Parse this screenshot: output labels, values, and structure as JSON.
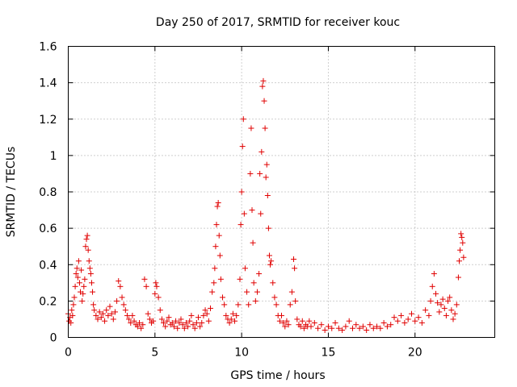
{
  "chart_data": {
    "type": "scatter",
    "title": "Day 250 of 2017, SRMTID for receiver kouc",
    "xlabel": "GPS time / hours",
    "ylabel": "SRMTID / TECUs",
    "xlim": [
      0,
      24.6
    ],
    "ylim": [
      0,
      1.6
    ],
    "xticks": [
      0,
      5,
      10,
      15,
      20
    ],
    "xtick_labels": [
      "0",
      "5",
      "10",
      "15",
      "20"
    ],
    "yticks": [
      0,
      0.2,
      0.4,
      0.6,
      0.8,
      1.0,
      1.2,
      1.4,
      1.6
    ],
    "ytick_labels": [
      "0",
      "0.2",
      "0.4",
      "0.6",
      "0.8",
      "1",
      "1.2",
      "1.4",
      "1.6"
    ],
    "grid": true,
    "marker": "+",
    "color": "#e00000",
    "series": [
      {
        "name": "SRMTID",
        "points": [
          [
            0.0,
            0.13
          ],
          [
            0.05,
            0.09
          ],
          [
            0.1,
            0.11
          ],
          [
            0.15,
            0.08
          ],
          [
            0.2,
            0.15
          ],
          [
            0.25,
            0.12
          ],
          [
            0.3,
            0.18
          ],
          [
            0.35,
            0.22
          ],
          [
            0.4,
            0.28
          ],
          [
            0.45,
            0.35
          ],
          [
            0.5,
            0.38
          ],
          [
            0.55,
            0.33
          ],
          [
            0.6,
            0.42
          ],
          [
            0.65,
            0.3
          ],
          [
            0.7,
            0.25
          ],
          [
            0.75,
            0.37
          ],
          [
            0.8,
            0.2
          ],
          [
            0.85,
            0.24
          ],
          [
            0.9,
            0.28
          ],
          [
            0.95,
            0.32
          ],
          [
            1.0,
            0.5
          ],
          [
            1.05,
            0.54
          ],
          [
            1.1,
            0.56
          ],
          [
            1.15,
            0.48
          ],
          [
            1.2,
            0.42
          ],
          [
            1.25,
            0.38
          ],
          [
            1.3,
            0.35
          ],
          [
            1.35,
            0.3
          ],
          [
            1.4,
            0.25
          ],
          [
            1.45,
            0.18
          ],
          [
            1.5,
            0.15
          ],
          [
            1.6,
            0.12
          ],
          [
            1.7,
            0.1
          ],
          [
            1.8,
            0.14
          ],
          [
            1.9,
            0.11
          ],
          [
            2.0,
            0.13
          ],
          [
            2.1,
            0.09
          ],
          [
            2.2,
            0.15
          ],
          [
            2.3,
            0.12
          ],
          [
            2.4,
            0.17
          ],
          [
            2.5,
            0.13
          ],
          [
            2.6,
            0.1
          ],
          [
            2.7,
            0.14
          ],
          [
            2.8,
            0.2
          ],
          [
            2.9,
            0.31
          ],
          [
            3.0,
            0.28
          ],
          [
            3.1,
            0.22
          ],
          [
            3.2,
            0.18
          ],
          [
            3.3,
            0.15
          ],
          [
            3.4,
            0.12
          ],
          [
            3.5,
            0.1
          ],
          [
            3.6,
            0.08
          ],
          [
            3.7,
            0.12
          ],
          [
            3.8,
            0.09
          ],
          [
            3.9,
            0.07
          ],
          [
            4.0,
            0.06
          ],
          [
            4.1,
            0.08
          ],
          [
            4.2,
            0.05
          ],
          [
            4.3,
            0.07
          ],
          [
            4.4,
            0.32
          ],
          [
            4.5,
            0.28
          ],
          [
            4.6,
            0.13
          ],
          [
            4.7,
            0.1
          ],
          [
            4.8,
            0.08
          ],
          [
            4.9,
            0.09
          ],
          [
            5.0,
            0.24
          ],
          [
            5.05,
            0.3
          ],
          [
            5.1,
            0.28
          ],
          [
            5.2,
            0.22
          ],
          [
            5.3,
            0.15
          ],
          [
            5.4,
            0.1
          ],
          [
            5.5,
            0.08
          ],
          [
            5.6,
            0.06
          ],
          [
            5.7,
            0.09
          ],
          [
            5.8,
            0.11
          ],
          [
            5.9,
            0.07
          ],
          [
            6.0,
            0.08
          ],
          [
            6.1,
            0.06
          ],
          [
            6.2,
            0.09
          ],
          [
            6.3,
            0.05
          ],
          [
            6.4,
            0.08
          ],
          [
            6.5,
            0.1
          ],
          [
            6.6,
            0.07
          ],
          [
            6.7,
            0.05
          ],
          [
            6.8,
            0.08
          ],
          [
            6.9,
            0.06
          ],
          [
            7.0,
            0.09
          ],
          [
            7.1,
            0.12
          ],
          [
            7.2,
            0.07
          ],
          [
            7.3,
            0.05
          ],
          [
            7.4,
            0.08
          ],
          [
            7.5,
            0.11
          ],
          [
            7.6,
            0.06
          ],
          [
            7.7,
            0.08
          ],
          [
            7.8,
            0.12
          ],
          [
            7.9,
            0.15
          ],
          [
            8.0,
            0.13
          ],
          [
            8.1,
            0.09
          ],
          [
            8.2,
            0.16
          ],
          [
            8.3,
            0.25
          ],
          [
            8.4,
            0.3
          ],
          [
            8.45,
            0.38
          ],
          [
            8.5,
            0.5
          ],
          [
            8.55,
            0.62
          ],
          [
            8.6,
            0.72
          ],
          [
            8.65,
            0.74
          ],
          [
            8.7,
            0.56
          ],
          [
            8.75,
            0.45
          ],
          [
            8.8,
            0.32
          ],
          [
            8.9,
            0.22
          ],
          [
            9.0,
            0.18
          ],
          [
            9.1,
            0.12
          ],
          [
            9.2,
            0.1
          ],
          [
            9.3,
            0.08
          ],
          [
            9.4,
            0.1
          ],
          [
            9.5,
            0.13
          ],
          [
            9.6,
            0.09
          ],
          [
            9.7,
            0.12
          ],
          [
            9.8,
            0.18
          ],
          [
            9.9,
            0.32
          ],
          [
            9.95,
            0.62
          ],
          [
            10.0,
            0.8
          ],
          [
            10.05,
            1.05
          ],
          [
            10.1,
            1.2
          ],
          [
            10.15,
            0.68
          ],
          [
            10.2,
            0.38
          ],
          [
            10.3,
            0.25
          ],
          [
            10.4,
            0.18
          ],
          [
            10.5,
            0.9
          ],
          [
            10.55,
            1.15
          ],
          [
            10.6,
            0.7
          ],
          [
            10.65,
            0.52
          ],
          [
            10.7,
            0.3
          ],
          [
            10.8,
            0.2
          ],
          [
            10.9,
            0.25
          ],
          [
            11.0,
            0.35
          ],
          [
            11.05,
            0.9
          ],
          [
            11.1,
            0.68
          ],
          [
            11.15,
            1.02
          ],
          [
            11.2,
            1.38
          ],
          [
            11.25,
            1.41
          ],
          [
            11.3,
            1.3
          ],
          [
            11.35,
            1.15
          ],
          [
            11.4,
            0.88
          ],
          [
            11.45,
            0.95
          ],
          [
            11.5,
            0.78
          ],
          [
            11.55,
            0.6
          ],
          [
            11.6,
            0.45
          ],
          [
            11.65,
            0.4
          ],
          [
            11.7,
            0.42
          ],
          [
            11.8,
            0.3
          ],
          [
            11.9,
            0.22
          ],
          [
            12.0,
            0.18
          ],
          [
            12.1,
            0.12
          ],
          [
            12.2,
            0.09
          ],
          [
            12.3,
            0.12
          ],
          [
            12.4,
            0.08
          ],
          [
            12.5,
            0.06
          ],
          [
            12.6,
            0.09
          ],
          [
            12.7,
            0.07
          ],
          [
            12.8,
            0.18
          ],
          [
            12.9,
            0.25
          ],
          [
            13.0,
            0.43
          ],
          [
            13.05,
            0.38
          ],
          [
            13.1,
            0.2
          ],
          [
            13.2,
            0.1
          ],
          [
            13.3,
            0.07
          ],
          [
            13.4,
            0.06
          ],
          [
            13.5,
            0.09
          ],
          [
            13.6,
            0.05
          ],
          [
            13.7,
            0.07
          ],
          [
            13.8,
            0.06
          ],
          [
            13.9,
            0.09
          ],
          [
            14.0,
            0.06
          ],
          [
            14.2,
            0.08
          ],
          [
            14.4,
            0.05
          ],
          [
            14.6,
            0.07
          ],
          [
            14.8,
            0.04
          ],
          [
            15.0,
            0.06
          ],
          [
            15.2,
            0.05
          ],
          [
            15.4,
            0.08
          ],
          [
            15.6,
            0.05
          ],
          [
            15.8,
            0.04
          ],
          [
            16.0,
            0.06
          ],
          [
            16.2,
            0.09
          ],
          [
            16.4,
            0.05
          ],
          [
            16.6,
            0.07
          ],
          [
            16.8,
            0.05
          ],
          [
            17.0,
            0.06
          ],
          [
            17.2,
            0.04
          ],
          [
            17.4,
            0.07
          ],
          [
            17.6,
            0.05
          ],
          [
            17.8,
            0.06
          ],
          [
            18.0,
            0.05
          ],
          [
            18.2,
            0.08
          ],
          [
            18.4,
            0.06
          ],
          [
            18.6,
            0.07
          ],
          [
            18.8,
            0.11
          ],
          [
            19.0,
            0.09
          ],
          [
            19.2,
            0.12
          ],
          [
            19.4,
            0.08
          ],
          [
            19.6,
            0.1
          ],
          [
            19.8,
            0.13
          ],
          [
            20.0,
            0.09
          ],
          [
            20.2,
            0.11
          ],
          [
            20.4,
            0.08
          ],
          [
            20.6,
            0.15
          ],
          [
            20.8,
            0.12
          ],
          [
            20.9,
            0.2
          ],
          [
            21.0,
            0.28
          ],
          [
            21.1,
            0.35
          ],
          [
            21.2,
            0.24
          ],
          [
            21.3,
            0.19
          ],
          [
            21.4,
            0.14
          ],
          [
            21.5,
            0.18
          ],
          [
            21.6,
            0.21
          ],
          [
            21.7,
            0.16
          ],
          [
            21.8,
            0.12
          ],
          [
            21.9,
            0.2
          ],
          [
            22.0,
            0.22
          ],
          [
            22.1,
            0.15
          ],
          [
            22.2,
            0.1
          ],
          [
            22.3,
            0.13
          ],
          [
            22.4,
            0.18
          ],
          [
            22.5,
            0.33
          ],
          [
            22.55,
            0.42
          ],
          [
            22.6,
            0.48
          ],
          [
            22.65,
            0.57
          ],
          [
            22.7,
            0.55
          ],
          [
            22.75,
            0.52
          ],
          [
            22.8,
            0.44
          ]
        ]
      }
    ]
  }
}
